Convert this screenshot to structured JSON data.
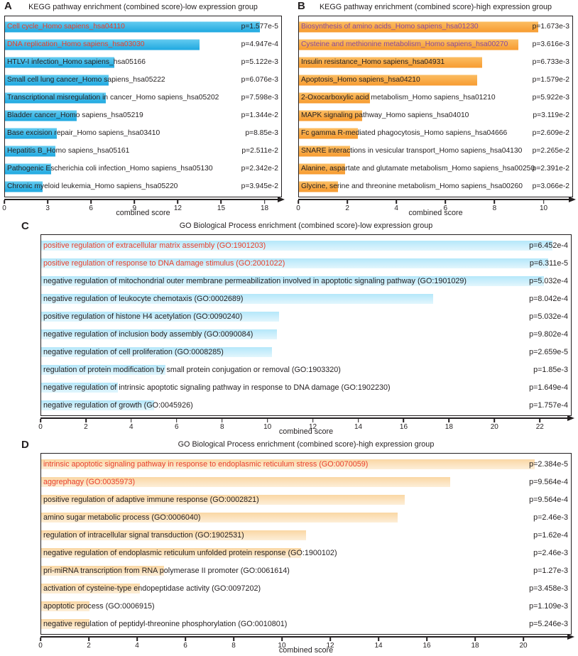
{
  "figure": {
    "background": "#ffffff",
    "text_color": "#231f20"
  },
  "chart_data": [
    {
      "id": "A",
      "letter": "A",
      "type": "bar",
      "orientation": "horizontal",
      "title": "KEGG pathway enrichment (combined score)-low expression group",
      "xlabel": "combined score",
      "xlim": [
        0,
        19.2
      ],
      "ticks": [
        0,
        3,
        6,
        9,
        12,
        15,
        18
      ],
      "bar_color_top": "#63cbf0",
      "bar_color_bottom": "#1fa8e0",
      "highlight_color": "#e8402c",
      "rows": [
        {
          "category": "Cell cycle_Homo sapiens_hsa04110",
          "value": 17.7,
          "p": "p=1.577e-5",
          "highlight": true
        },
        {
          "category": "DNA replication_Homo sapiens_hsa03030",
          "value": 13.5,
          "p": "p=4.947e-4",
          "highlight": true
        },
        {
          "category": "HTLV-I infection_Homo sapiens_hsa05166",
          "value": 7.6,
          "p": "p=5.122e-3",
          "highlight": false
        },
        {
          "category": "Small cell lung cancer_Homo sapiens_hsa05222",
          "value": 7.2,
          "p": "p=6.076e-3",
          "highlight": false
        },
        {
          "category": "Transcriptional misregulation in cancer_Homo sapiens_hsa05202",
          "value": 7.0,
          "p": "p=7.598e-3",
          "highlight": false
        },
        {
          "category": "Bladder cancer_Homo sapiens_hsa05219",
          "value": 5.0,
          "p": "p=1.344e-2",
          "highlight": false
        },
        {
          "category": "Base excision repair_Homo sapiens_hsa03410",
          "value": 3.6,
          "p": "p=8.85e-3",
          "highlight": false
        },
        {
          "category": "Hepatitis B_Homo sapiens_hsa05161",
          "value": 3.5,
          "p": "p=2.511e-2",
          "highlight": false
        },
        {
          "category": "Pathogenic Escherichia coli infection_Homo sapiens_hsa05130",
          "value": 3.2,
          "p": "p=2.342e-2",
          "highlight": false
        },
        {
          "category": "Chronic myeloid leukemia_Homo sapiens_hsa05220",
          "value": 2.6,
          "p": "p=3.945e-2",
          "highlight": false
        }
      ]
    },
    {
      "id": "B",
      "letter": "B",
      "type": "bar",
      "orientation": "horizontal",
      "title": "KEGG pathway enrichment (combined score)-high expression group",
      "xlabel": "combined score",
      "xlim": [
        0,
        11.2
      ],
      "ticks": [
        0,
        2,
        4,
        6,
        8,
        10
      ],
      "bar_color_top": "#fbbd62",
      "bar_color_bottom": "#f79b30",
      "highlight_color": "#8a4a9d",
      "rows": [
        {
          "category": "Biosynthesis of amino acids_Homo sapiens_hsa01230",
          "value": 9.8,
          "p": "p=1.673e-3",
          "highlight": true
        },
        {
          "category": "Cysteine and methionine metabolism_Homo sapiens_hsa00270",
          "value": 9.0,
          "p": "p=3.616e-3",
          "highlight": true
        },
        {
          "category": "Insulin resistance_Homo sapiens_hsa04931",
          "value": 7.5,
          "p": "p=6.733e-3",
          "highlight": false
        },
        {
          "category": "Apoptosis_Homo sapiens_hsa04210",
          "value": 7.3,
          "p": "p=1.579e-2",
          "highlight": false
        },
        {
          "category": "2-Oxocarboxylic acid metabolism_Homo sapiens_hsa01210",
          "value": 2.9,
          "p": "p=5.922e-3",
          "highlight": false
        },
        {
          "category": "MAPK signaling pathway_Homo sapiens_hsa04010",
          "value": 2.6,
          "p": "p=3.119e-2",
          "highlight": false
        },
        {
          "category": "Fc gamma R-mediated phagocytosis_Homo sapiens_hsa04666",
          "value": 2.4,
          "p": "p=2.609e-2",
          "highlight": false
        },
        {
          "category": "SNARE interactions in vesicular transport_Homo sapiens_hsa04130",
          "value": 2.1,
          "p": "p=2.265e-2",
          "highlight": false
        },
        {
          "category": "Alanine, aspartate and glutamate metabolism_Homo sapiens_hsa00250",
          "value": 1.9,
          "p": "p=2.391e-2",
          "highlight": false
        },
        {
          "category": "Glycine, serine and threonine metabolism_Homo sapiens_hsa00260",
          "value": 1.6,
          "p": "p=3.066e-2",
          "highlight": false
        }
      ]
    },
    {
      "id": "C",
      "letter": "C",
      "type": "bar",
      "orientation": "horizontal",
      "title": "GO Biological Process enrichment (combined score)-low expression group",
      "xlabel": "combined score",
      "xlim": [
        0,
        23.4
      ],
      "ticks": [
        0,
        2,
        4,
        6,
        8,
        10,
        12,
        14,
        16,
        18,
        20,
        22
      ],
      "bar_color_top": "#b5e7fa",
      "bar_color_bottom": "#e2f6fd",
      "highlight_color": "#e8402c",
      "rows": [
        {
          "category": "positive regulation of extracellular matrix assembly (GO:1901203)",
          "value": 22.6,
          "p": "p=6.452e-4",
          "highlight": true
        },
        {
          "category": "positive regulation of response to DNA damage stimulus (GO:2001022)",
          "value": 22.4,
          "p": "p=6.311e-5",
          "highlight": true
        },
        {
          "category": "negative regulation of mitochondrial outer membrane permeabilization involved in apoptotic signaling pathway (GO:1901029)",
          "value": 22.2,
          "p": "p=5.032e-4",
          "highlight": false
        },
        {
          "category": "negative regulation of leukocyte chemotaxis (GO:0002689)",
          "value": 17.3,
          "p": "p=8.042e-4",
          "highlight": false
        },
        {
          "category": "positive regulation of histone H4 acetylation (GO:0090240)",
          "value": 10.5,
          "p": "p=5.032e-4",
          "highlight": false
        },
        {
          "category": "negative regulation of inclusion body assembly (GO:0090084)",
          "value": 10.4,
          "p": "p=9.802e-4",
          "highlight": false
        },
        {
          "category": "negative regulation of cell proliferation (GO:0008285)",
          "value": 10.2,
          "p": "p=2.659e-5",
          "highlight": false
        },
        {
          "category": "regulation of protein modification by small protein conjugation or removal (GO:1903320)",
          "value": 5.5,
          "p": "p=1.85e-3",
          "highlight": false
        },
        {
          "category": "negative regulation of intrinsic apoptotic signaling pathway in response to DNA damage (GO:1902230)",
          "value": 3.4,
          "p": "p=1.649e-4",
          "highlight": false
        },
        {
          "category": "negative regulation of growth (GO:0045926)",
          "value": 5.0,
          "p": "p=1.757e-4",
          "highlight": false
        }
      ]
    },
    {
      "id": "D",
      "letter": "D",
      "type": "bar",
      "orientation": "horizontal",
      "title": "GO Biological Process enrichment (combined score)-high expression group",
      "xlabel": "combined score",
      "xlim": [
        0,
        22.0
      ],
      "ticks": [
        0,
        2,
        4,
        6,
        8,
        10,
        12,
        14,
        16,
        18,
        20
      ],
      "bar_color_top": "#fad7a4",
      "bar_color_bottom": "#fdeed8",
      "highlight_color": "#e8402c",
      "rows": [
        {
          "category": "intrinsic apoptotic signaling pathway in response to endoplasmic reticulum stress (GO:0070059)",
          "value": 20.5,
          "p": "p=2.384e-5",
          "highlight": true
        },
        {
          "category": "aggrephagy (GO:0035973)",
          "value": 17.0,
          "p": "p=9.564e-4",
          "highlight": true
        },
        {
          "category": "positive regulation of adaptive immune response (GO:0002821)",
          "value": 15.1,
          "p": "p=9.564e-4",
          "highlight": false
        },
        {
          "category": "amino sugar metabolic process (GO:0006040)",
          "value": 14.8,
          "p": "p=2.46e-3",
          "highlight": false
        },
        {
          "category": "regulation of intracellular signal transduction (GO:1902531)",
          "value": 11.0,
          "p": "p=1.62e-4",
          "highlight": false
        },
        {
          "category": "negative regulation of endoplasmic reticulum unfolded protein response (GO:1900102)",
          "value": 10.8,
          "p": "p=2.46e-3",
          "highlight": false
        },
        {
          "category": "pri-miRNA transcription from RNA polymerase II promoter (GO:0061614)",
          "value": 5.1,
          "p": "p=1.27e-3",
          "highlight": false
        },
        {
          "category": "activation of cysteine-type endopeptidase activity (GO:0097202)",
          "value": 4.1,
          "p": "p=3.458e-3",
          "highlight": false
        },
        {
          "category": "apoptotic process (GO:0006915)",
          "value": 2.0,
          "p": "p=1.109e-3",
          "highlight": false
        },
        {
          "category": "negative regulation of peptidyl-threonine phosphorylation (GO:0010801)",
          "value": 2.0,
          "p": "p=5.246e-3",
          "highlight": false
        }
      ]
    }
  ]
}
